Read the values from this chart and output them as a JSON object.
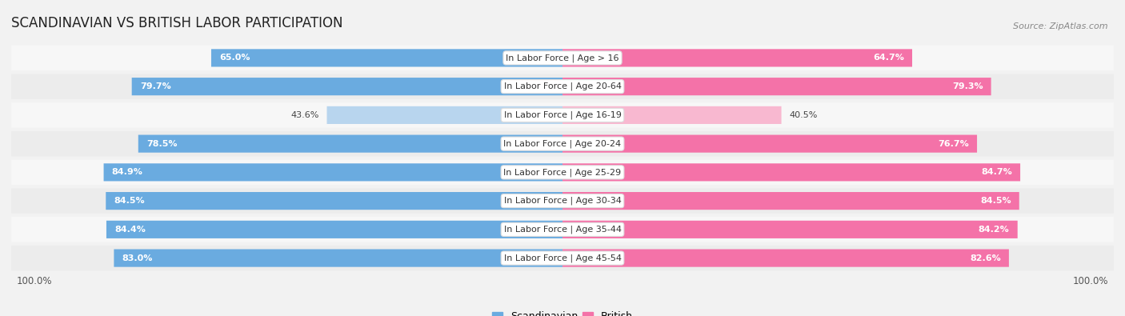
{
  "title": "SCANDINAVIAN VS BRITISH LABOR PARTICIPATION",
  "source": "Source: ZipAtlas.com",
  "categories": [
    "In Labor Force | Age > 16",
    "In Labor Force | Age 20-64",
    "In Labor Force | Age 16-19",
    "In Labor Force | Age 20-24",
    "In Labor Force | Age 25-29",
    "In Labor Force | Age 30-34",
    "In Labor Force | Age 35-44",
    "In Labor Force | Age 45-54"
  ],
  "scandinavian_values": [
    65.0,
    79.7,
    43.6,
    78.5,
    84.9,
    84.5,
    84.4,
    83.0
  ],
  "british_values": [
    64.7,
    79.3,
    40.5,
    76.7,
    84.7,
    84.5,
    84.2,
    82.6
  ],
  "scandinavian_color_full": "#6aabe0",
  "scandinavian_color_light": "#b8d5ee",
  "british_color_full": "#f472a8",
  "british_color_light": "#f8b8d0",
  "row_bg_odd": "#f7f7f7",
  "row_bg_even": "#ececec",
  "label_fontsize": 8.0,
  "cat_fontsize": 8.0,
  "title_fontsize": 12,
  "source_fontsize": 8,
  "legend_fontsize": 9,
  "x_label": "100.0%",
  "max_value": 100.0,
  "threshold": 50.0
}
